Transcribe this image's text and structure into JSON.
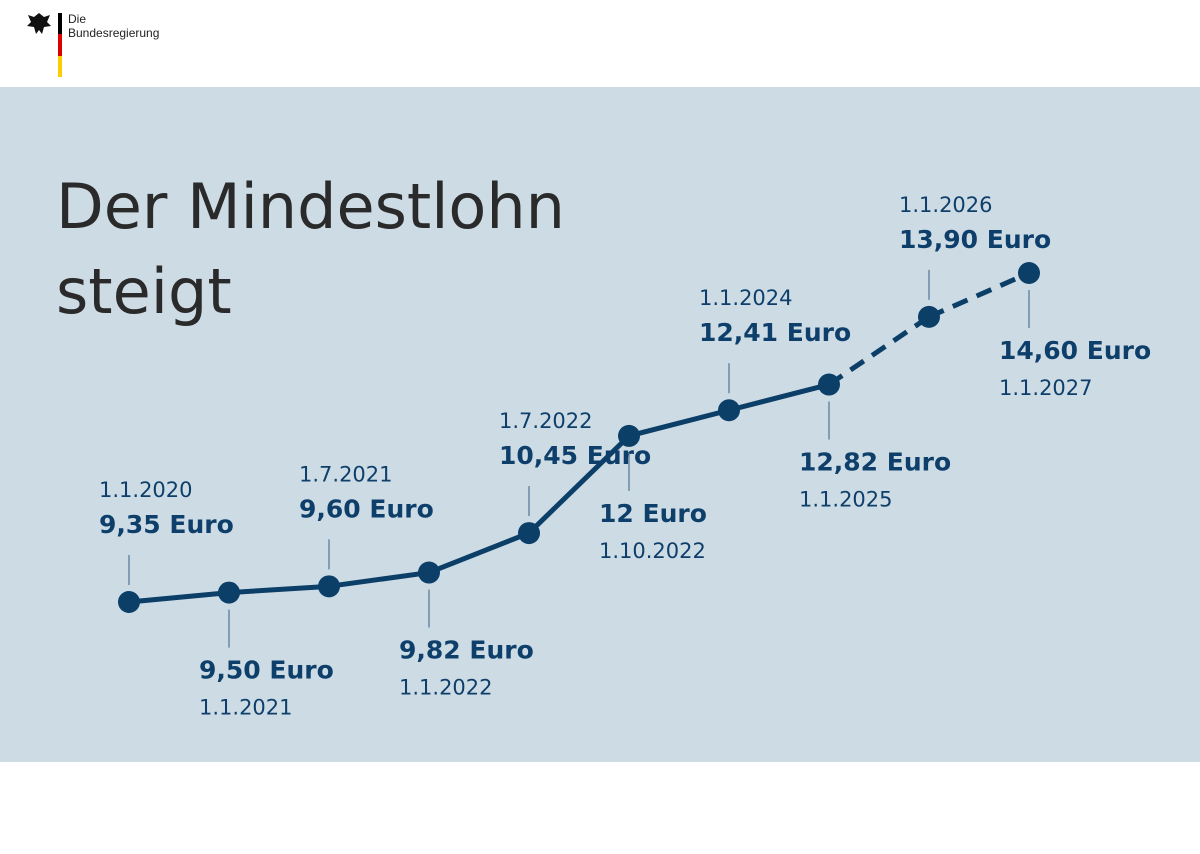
{
  "header": {
    "line1": "Die",
    "line2": "Bundesregierung"
  },
  "chart_data": {
    "type": "line",
    "title_line1": "Der Mindestlohn",
    "title_line2": "steigt",
    "categories": [
      "1.1.2020",
      "1.1.2021",
      "1.7.2021",
      "1.1.2022",
      "1.7.2022",
      "1.10.2022",
      "1.1.2024",
      "1.1.2025",
      "1.1.2026",
      "1.1.2027"
    ],
    "values": [
      9.35,
      9.5,
      9.6,
      9.82,
      10.45,
      12,
      12.41,
      12.82,
      13.9,
      14.6
    ],
    "value_labels": [
      "9,35 Euro",
      "9,50 Euro",
      "9,60 Euro",
      "9,82 Euro",
      "10,45 Euro",
      "12 Euro",
      "12,41 Euro",
      "12,82 Euro",
      "13,90 Euro",
      "14,60 Euro"
    ],
    "segment_styles": [
      "solid",
      "solid",
      "solid",
      "solid",
      "solid",
      "solid",
      "solid",
      "dashed",
      "dashed"
    ],
    "color": "#0b3f68"
  }
}
